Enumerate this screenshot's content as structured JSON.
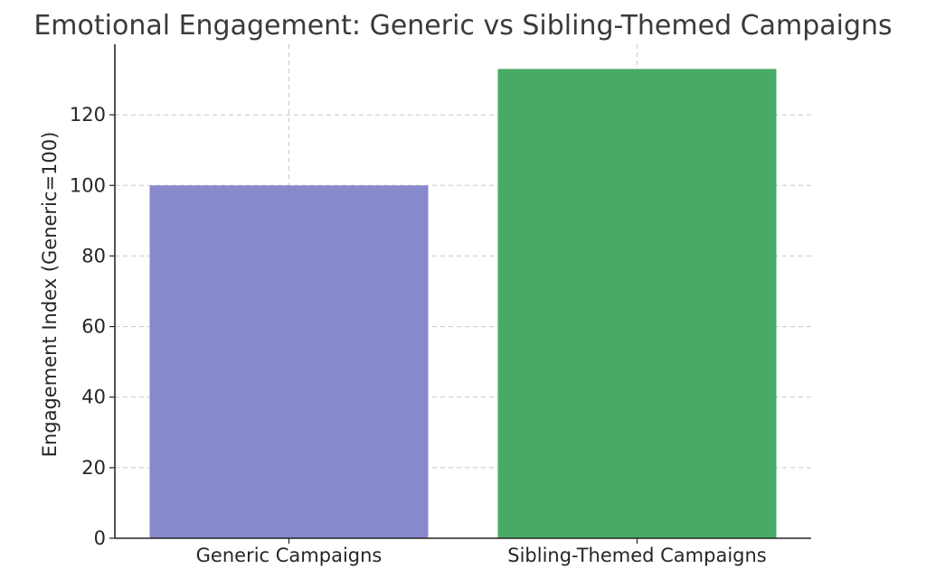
{
  "chart_data": {
    "type": "bar",
    "title": "Emotional Engagement: Generic vs Sibling-Themed Campaigns",
    "xlabel": "",
    "ylabel": "Engagement Index (Generic=100)",
    "categories": [
      "Generic Campaigns",
      "Sibling-Themed Campaigns"
    ],
    "values": [
      100,
      133
    ],
    "colors": [
      "#8888cc",
      "#49aa66"
    ],
    "ylim": [
      0,
      140
    ],
    "yticks": [
      0,
      20,
      40,
      60,
      80,
      100,
      120
    ],
    "grid": true,
    "legend": "none"
  }
}
